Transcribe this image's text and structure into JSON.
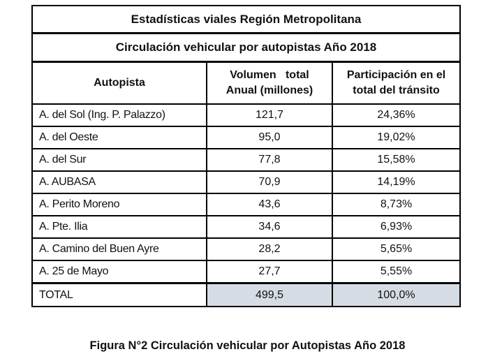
{
  "table": {
    "title": "Estadísticas viales Región Metropolitana",
    "subtitle": "Circulación vehicular por autopistas Año 2018",
    "headers": {
      "col1": "Autopista",
      "col2_line1": "Volumen   total",
      "col2_line2": "Anual (millones)",
      "col3_line1": "Participación en el",
      "col3_line2": "total del tránsito"
    },
    "rows": [
      {
        "name": "A. del Sol (Ing. P. Palazzo)",
        "volume": "121,7",
        "share": "24,36%"
      },
      {
        "name": "A. del Oeste",
        "volume": "95,0",
        "share": "19,02%"
      },
      {
        "name": "A. del Sur",
        "volume": "77,8",
        "share": "15,58%"
      },
      {
        "name": "A. AUBASA",
        "volume": "70,9",
        "share": "14,19%"
      },
      {
        "name": "A. Perito Moreno",
        "volume": "43,6",
        "share": "8,73%"
      },
      {
        "name": "A. Pte. Ilia",
        "volume": "34,6",
        "share": "6,93%"
      },
      {
        "name": "A. Camino del Buen Ayre",
        "volume": "28,2",
        "share": "5,65%"
      },
      {
        "name": "A. 25 de Mayo",
        "volume": "27,7",
        "share": "5,55%"
      }
    ],
    "total": {
      "name": "TOTAL",
      "volume": "499,5",
      "share": "100,0%"
    },
    "total_shade_color": "#d6dce4"
  },
  "caption": "Figura N°2 Circulación vehicular por Autopistas Año 2018"
}
